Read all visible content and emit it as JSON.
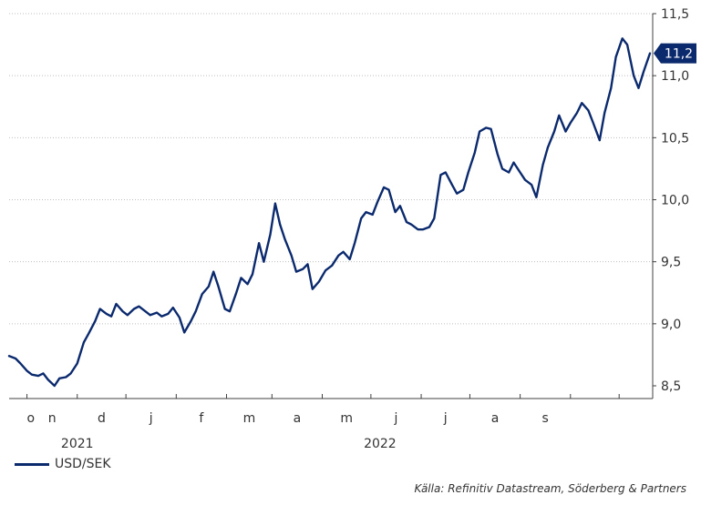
{
  "chart_data": {
    "type": "line",
    "title": "",
    "xlabel": "",
    "ylabel": "",
    "ylim": [
      8.45,
      11.5
    ],
    "y_ticks": [
      "11,5",
      "11,0",
      "10,5",
      "10,0",
      "9,5",
      "9,0",
      "8,5"
    ],
    "y_tick_values": [
      11.5,
      11.0,
      10.5,
      10.0,
      9.5,
      9.0,
      8.5
    ],
    "x_month_labels": [
      "o",
      "n",
      "d",
      "j",
      "f",
      "m",
      "a",
      "m",
      "j",
      "j",
      "a",
      "s"
    ],
    "x_year_labels": [
      "2021",
      "2022"
    ],
    "last_value_label": "11,2",
    "colors": {
      "series": "#0b2a6e",
      "grid": "#bfbfbf",
      "axis": "#404040"
    },
    "grid": true,
    "legend_position": "bottom-left",
    "series": [
      {
        "name": "USD/SEK",
        "points": [
          [
            "2021-09-20",
            8.74
          ],
          [
            "2021-09-24",
            8.72
          ],
          [
            "2021-09-27",
            8.68
          ],
          [
            "2021-10-01",
            8.62
          ],
          [
            "2021-10-04",
            8.59
          ],
          [
            "2021-10-08",
            8.58
          ],
          [
            "2021-10-11",
            8.6
          ],
          [
            "2021-10-14",
            8.55
          ],
          [
            "2021-10-18",
            8.5
          ],
          [
            "2021-10-21",
            8.56
          ],
          [
            "2021-10-25",
            8.57
          ],
          [
            "2021-10-28",
            8.6
          ],
          [
            "2021-11-01",
            8.68
          ],
          [
            "2021-11-05",
            8.85
          ],
          [
            "2021-11-08",
            8.92
          ],
          [
            "2021-11-12",
            9.02
          ],
          [
            "2021-11-15",
            9.12
          ],
          [
            "2021-11-19",
            9.08
          ],
          [
            "2021-11-22",
            9.06
          ],
          [
            "2021-11-25",
            9.16
          ],
          [
            "2021-11-29",
            9.1
          ],
          [
            "2021-12-02",
            9.07
          ],
          [
            "2021-12-06",
            9.12
          ],
          [
            "2021-12-09",
            9.14
          ],
          [
            "2021-12-13",
            9.1
          ],
          [
            "2021-12-16",
            9.07
          ],
          [
            "2021-12-20",
            9.09
          ],
          [
            "2021-12-23",
            9.06
          ],
          [
            "2021-12-27",
            9.08
          ],
          [
            "2021-12-30",
            9.13
          ],
          [
            "2022-01-03",
            9.05
          ],
          [
            "2022-01-06",
            8.93
          ],
          [
            "2022-01-10",
            9.02
          ],
          [
            "2022-01-13",
            9.1
          ],
          [
            "2022-01-17",
            9.24
          ],
          [
            "2022-01-21",
            9.3
          ],
          [
            "2022-01-24",
            9.42
          ],
          [
            "2022-01-27",
            9.3
          ],
          [
            "2022-01-31",
            9.12
          ],
          [
            "2022-02-03",
            9.1
          ],
          [
            "2022-02-07",
            9.25
          ],
          [
            "2022-02-10",
            9.37
          ],
          [
            "2022-02-14",
            9.32
          ],
          [
            "2022-02-17",
            9.4
          ],
          [
            "2022-02-21",
            9.65
          ],
          [
            "2022-02-24",
            9.5
          ],
          [
            "2022-02-28",
            9.72
          ],
          [
            "2022-03-03",
            9.97
          ],
          [
            "2022-03-06",
            9.8
          ],
          [
            "2022-03-09",
            9.68
          ],
          [
            "2022-03-13",
            9.55
          ],
          [
            "2022-03-16",
            9.42
          ],
          [
            "2022-03-20",
            9.44
          ],
          [
            "2022-03-23",
            9.48
          ],
          [
            "2022-03-26",
            9.28
          ],
          [
            "2022-03-30",
            9.34
          ],
          [
            "2022-04-03",
            9.43
          ],
          [
            "2022-04-07",
            9.47
          ],
          [
            "2022-04-11",
            9.55
          ],
          [
            "2022-04-14",
            9.58
          ],
          [
            "2022-04-18",
            9.52
          ],
          [
            "2022-04-21",
            9.65
          ],
          [
            "2022-04-25",
            9.85
          ],
          [
            "2022-04-28",
            9.9
          ],
          [
            "2022-05-02",
            9.88
          ],
          [
            "2022-05-05",
            9.98
          ],
          [
            "2022-05-09",
            10.1
          ],
          [
            "2022-05-12",
            10.08
          ],
          [
            "2022-05-16",
            9.9
          ],
          [
            "2022-05-19",
            9.95
          ],
          [
            "2022-05-23",
            9.82
          ],
          [
            "2022-05-26",
            9.8
          ],
          [
            "2022-05-30",
            9.76
          ],
          [
            "2022-06-02",
            9.76
          ],
          [
            "2022-06-06",
            9.78
          ],
          [
            "2022-06-09",
            9.85
          ],
          [
            "2022-06-13",
            10.2
          ],
          [
            "2022-06-16",
            10.22
          ],
          [
            "2022-06-20",
            10.12
          ],
          [
            "2022-06-23",
            10.05
          ],
          [
            "2022-06-27",
            10.08
          ],
          [
            "2022-06-30",
            10.22
          ],
          [
            "2022-07-04",
            10.38
          ],
          [
            "2022-07-07",
            10.55
          ],
          [
            "2022-07-11",
            10.58
          ],
          [
            "2022-07-14",
            10.57
          ],
          [
            "2022-07-18",
            10.37
          ],
          [
            "2022-07-21",
            10.25
          ],
          [
            "2022-07-25",
            10.22
          ],
          [
            "2022-07-28",
            10.3
          ],
          [
            "2022-08-01",
            10.22
          ],
          [
            "2022-08-04",
            10.16
          ],
          [
            "2022-08-08",
            10.12
          ],
          [
            "2022-08-11",
            10.02
          ],
          [
            "2022-08-15",
            10.28
          ],
          [
            "2022-08-18",
            10.42
          ],
          [
            "2022-08-22",
            10.55
          ],
          [
            "2022-08-25",
            10.68
          ],
          [
            "2022-08-29",
            10.55
          ],
          [
            "2022-09-01",
            10.62
          ],
          [
            "2022-09-05",
            10.7
          ],
          [
            "2022-09-08",
            10.78
          ],
          [
            "2022-09-12",
            10.72
          ],
          [
            "2022-09-15",
            10.62
          ],
          [
            "2022-09-19",
            10.48
          ],
          [
            "2022-09-22",
            10.7
          ],
          [
            "2022-09-26",
            10.9
          ],
          [
            "2022-09-29",
            11.15
          ],
          [
            "2022-10-03",
            11.3
          ],
          [
            "2022-10-06",
            11.25
          ],
          [
            "2022-10-10",
            11.0
          ],
          [
            "2022-10-13",
            10.9
          ],
          [
            "2022-10-16",
            11.03
          ],
          [
            "2022-10-20",
            11.18
          ]
        ]
      }
    ]
  },
  "legend": {
    "label": "USD/SEK"
  },
  "source": "Källa: Refinitiv Datastream, Söderberg & Partners"
}
